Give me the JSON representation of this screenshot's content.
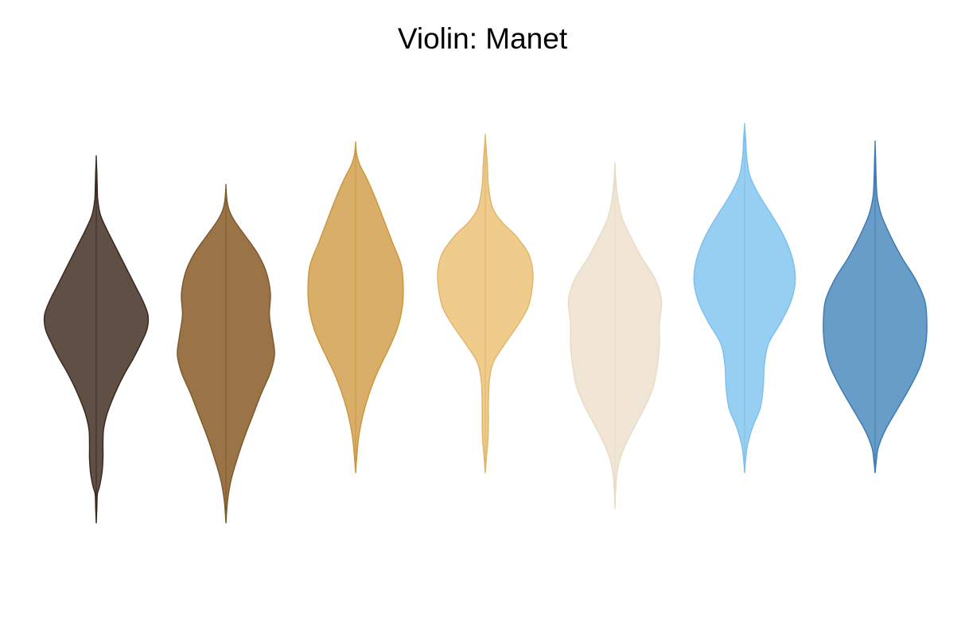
{
  "chart_data": {
    "type": "violin",
    "title": "Violin: Manet",
    "xlabel": "",
    "ylabel": "",
    "axes_visible": false,
    "grid": false,
    "legend": "none",
    "series": [
      {
        "color": "#3b2a20",
        "fill": "#5f4f45",
        "median": 0.6,
        "profile": [
          [
            -2.6,
            0
          ],
          [
            -2.4,
            0.01
          ],
          [
            -2.2,
            0.02
          ],
          [
            -2.1,
            0.06
          ],
          [
            -1.9,
            0.11
          ],
          [
            -1.7,
            0.13
          ],
          [
            -1.5,
            0.13
          ],
          [
            -1.3,
            0.14
          ],
          [
            -1.1,
            0.2
          ],
          [
            -0.9,
            0.3
          ],
          [
            -0.7,
            0.42
          ],
          [
            -0.5,
            0.56
          ],
          [
            -0.3,
            0.72
          ],
          [
            -0.1,
            0.86
          ],
          [
            0.1,
            0.98
          ],
          [
            0.3,
            1.0
          ],
          [
            0.5,
            0.9
          ],
          [
            0.7,
            0.76
          ],
          [
            0.9,
            0.62
          ],
          [
            1.1,
            0.48
          ],
          [
            1.3,
            0.34
          ],
          [
            1.5,
            0.2
          ],
          [
            1.7,
            0.08
          ],
          [
            1.9,
            0.03
          ],
          [
            2.05,
            0.02
          ],
          [
            2.3,
            0.01
          ],
          [
            2.5,
            0
          ]
        ]
      },
      {
        "color": "#7d5a2c",
        "fill": "#9a7447",
        "median": -0.1,
        "profile": [
          [
            -2.6,
            0
          ],
          [
            -2.3,
            0.03
          ],
          [
            -2.0,
            0.1
          ],
          [
            -1.7,
            0.22
          ],
          [
            -1.4,
            0.36
          ],
          [
            -1.1,
            0.52
          ],
          [
            -0.8,
            0.68
          ],
          [
            -0.5,
            0.86
          ],
          [
            -0.25,
            0.94
          ],
          [
            0.0,
            0.9
          ],
          [
            0.3,
            0.84
          ],
          [
            0.6,
            0.86
          ],
          [
            0.9,
            0.78
          ],
          [
            1.15,
            0.62
          ],
          [
            1.4,
            0.38
          ],
          [
            1.6,
            0.18
          ],
          [
            1.75,
            0.07
          ],
          [
            1.9,
            0.02
          ],
          [
            2.1,
            0
          ]
        ]
      },
      {
        "color": "#c9983f",
        "fill": "#d9ae68",
        "median": 1.1,
        "profile": [
          [
            -1.9,
            0
          ],
          [
            -1.7,
            0.02
          ],
          [
            -1.4,
            0.06
          ],
          [
            -1.1,
            0.14
          ],
          [
            -0.8,
            0.26
          ],
          [
            -0.5,
            0.42
          ],
          [
            -0.2,
            0.62
          ],
          [
            0.1,
            0.8
          ],
          [
            0.4,
            0.9
          ],
          [
            0.7,
            0.92
          ],
          [
            1.0,
            0.88
          ],
          [
            1.3,
            0.72
          ],
          [
            1.6,
            0.56
          ],
          [
            1.9,
            0.4
          ],
          [
            2.2,
            0.22
          ],
          [
            2.4,
            0.08
          ],
          [
            2.55,
            0.02
          ],
          [
            2.7,
            0
          ]
        ]
      },
      {
        "color": "#e2b66a",
        "fill": "#efcb8c",
        "median": 1.0,
        "profile": [
          [
            -1.9,
            0
          ],
          [
            -1.7,
            0.02
          ],
          [
            -1.45,
            0.05
          ],
          [
            -1.2,
            0.06
          ],
          [
            -0.9,
            0.06
          ],
          [
            -0.6,
            0.08
          ],
          [
            -0.35,
            0.16
          ],
          [
            -0.1,
            0.38
          ],
          [
            0.15,
            0.62
          ],
          [
            0.4,
            0.82
          ],
          [
            0.65,
            0.9
          ],
          [
            0.9,
            0.92
          ],
          [
            1.15,
            0.84
          ],
          [
            1.4,
            0.6
          ],
          [
            1.6,
            0.32
          ],
          [
            1.8,
            0.14
          ],
          [
            2.1,
            0.06
          ],
          [
            2.4,
            0.04
          ],
          [
            2.6,
            0.02
          ],
          [
            2.8,
            0
          ]
        ]
      },
      {
        "color": "#e8dcc6",
        "fill": "#f1e6d6",
        "median": 0.4,
        "profile": [
          [
            -2.4,
            0
          ],
          [
            -2.2,
            0.01
          ],
          [
            -1.95,
            0.03
          ],
          [
            -1.7,
            0.1
          ],
          [
            -1.45,
            0.24
          ],
          [
            -1.2,
            0.42
          ],
          [
            -0.95,
            0.6
          ],
          [
            -0.7,
            0.74
          ],
          [
            -0.4,
            0.82
          ],
          [
            -0.1,
            0.86
          ],
          [
            0.2,
            0.86
          ],
          [
            0.5,
            0.9
          ],
          [
            0.8,
            0.78
          ],
          [
            1.1,
            0.52
          ],
          [
            1.4,
            0.3
          ],
          [
            1.65,
            0.14
          ],
          [
            1.9,
            0.06
          ],
          [
            2.15,
            0.02
          ],
          [
            2.4,
            0
          ]
        ]
      },
      {
        "color": "#7ec0ee",
        "fill": "#97cff3",
        "median": 1.1,
        "profile": [
          [
            -1.9,
            0
          ],
          [
            -1.7,
            0.02
          ],
          [
            -1.5,
            0.06
          ],
          [
            -1.25,
            0.16
          ],
          [
            -1.0,
            0.3
          ],
          [
            -0.7,
            0.36
          ],
          [
            -0.4,
            0.38
          ],
          [
            -0.1,
            0.46
          ],
          [
            0.2,
            0.7
          ],
          [
            0.5,
            0.9
          ],
          [
            0.8,
            0.98
          ],
          [
            1.1,
            0.92
          ],
          [
            1.4,
            0.76
          ],
          [
            1.7,
            0.52
          ],
          [
            2.0,
            0.26
          ],
          [
            2.25,
            0.1
          ],
          [
            2.5,
            0.04
          ],
          [
            2.75,
            0.02
          ],
          [
            2.95,
            0
          ]
        ]
      },
      {
        "color": "#3f7bb3",
        "fill": "#689dc8",
        "median": 0.6,
        "profile": [
          [
            -1.9,
            0
          ],
          [
            -1.75,
            0.02
          ],
          [
            -1.55,
            0.06
          ],
          [
            -1.3,
            0.2
          ],
          [
            -1.0,
            0.44
          ],
          [
            -0.7,
            0.68
          ],
          [
            -0.4,
            0.88
          ],
          [
            -0.1,
            0.98
          ],
          [
            0.2,
            1.0
          ],
          [
            0.5,
            0.96
          ],
          [
            0.8,
            0.78
          ],
          [
            1.1,
            0.52
          ],
          [
            1.4,
            0.3
          ],
          [
            1.7,
            0.12
          ],
          [
            1.95,
            0.04
          ],
          [
            2.2,
            0.02
          ],
          [
            2.45,
            0.01
          ],
          [
            2.7,
            0
          ]
        ]
      }
    ]
  }
}
